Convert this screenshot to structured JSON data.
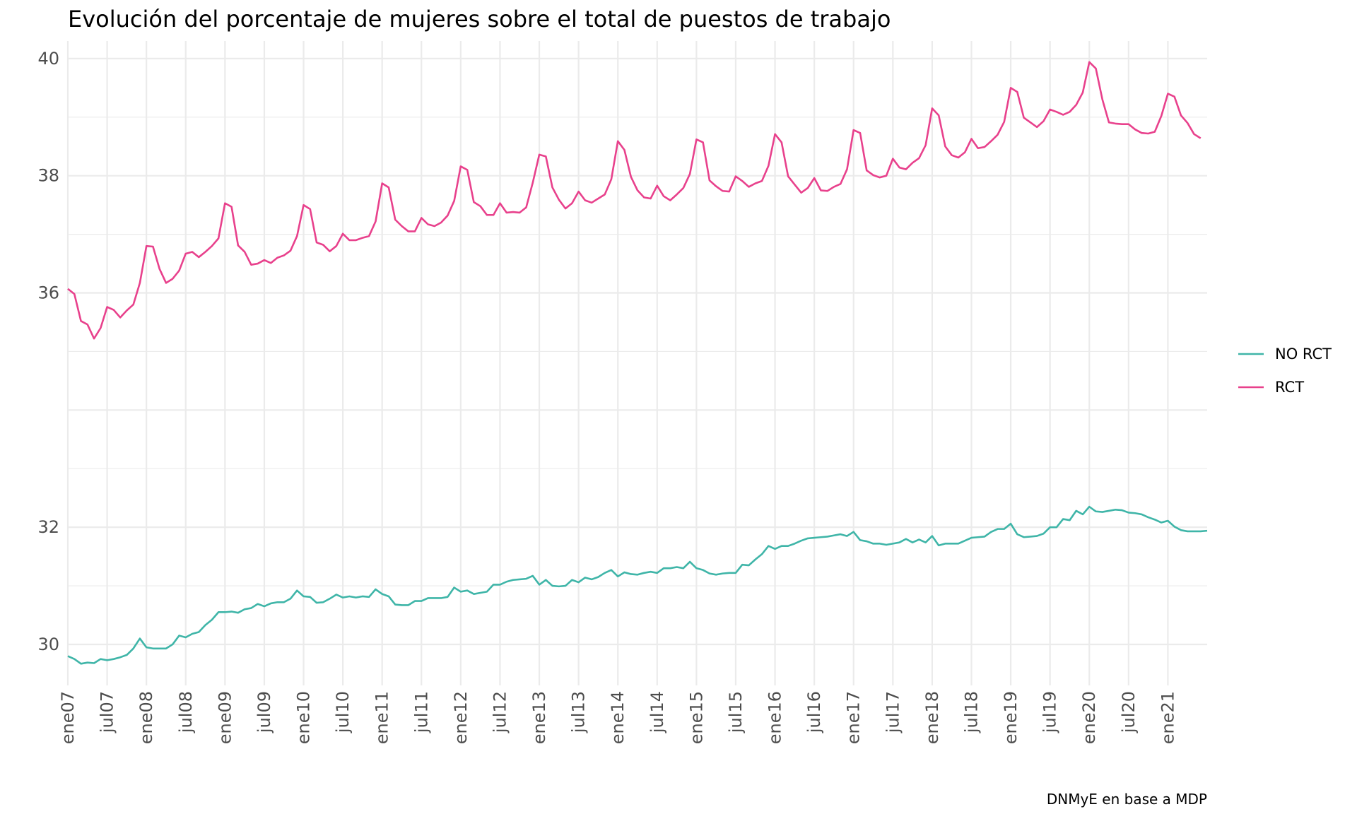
{
  "chart_data": {
    "type": "line",
    "title": "Evolución del porcentaje de mujeres sobre el total de puestos de trabajo",
    "caption": "DNMyE en base a MDP",
    "xlabel": "",
    "ylabel": "",
    "x_start": "2007-01",
    "x_end": "2021-09",
    "x_tick_labels": [
      "ene07",
      "jul07",
      "ene08",
      "jul08",
      "ene09",
      "jul09",
      "ene10",
      "jul10",
      "ene11",
      "jul11",
      "ene12",
      "jul12",
      "ene13",
      "jul13",
      "ene14",
      "jul14",
      "ene15",
      "jul15",
      "ene16",
      "jul16",
      "ene17",
      "jul17",
      "ene18",
      "jul18",
      "ene19",
      "jul19",
      "ene20",
      "jul20",
      "ene21"
    ],
    "y_ticks": [
      30,
      32,
      36,
      38,
      40
    ],
    "ylim": [
      29.3,
      40.3
    ],
    "legend_position": "right",
    "grid": true,
    "series": [
      {
        "name": "NO RCT",
        "color": "#3fb5a8",
        "values": [
          29.8,
          29.75,
          29.67,
          29.69,
          29.68,
          29.75,
          29.73,
          29.75,
          29.78,
          29.82,
          29.93,
          30.1,
          29.95,
          29.93,
          29.93,
          29.93,
          30.0,
          30.15,
          30.12,
          30.18,
          30.21,
          30.33,
          30.42,
          30.55,
          30.55,
          30.56,
          30.54,
          30.6,
          30.62,
          30.69,
          30.65,
          30.7,
          30.72,
          30.72,
          30.78,
          30.92,
          30.82,
          30.81,
          30.71,
          30.72,
          30.78,
          30.85,
          30.8,
          30.82,
          30.8,
          30.82,
          30.81,
          30.94,
          30.86,
          30.82,
          30.68,
          30.67,
          30.67,
          30.74,
          30.74,
          30.79,
          30.79,
          30.79,
          30.81,
          30.97,
          30.9,
          30.92,
          30.86,
          30.88,
          30.9,
          31.02,
          31.02,
          31.07,
          31.1,
          31.11,
          31.12,
          31.17,
          31.02,
          31.1,
          31.0,
          30.99,
          31.0,
          31.1,
          31.06,
          31.14,
          31.11,
          31.15,
          31.22,
          31.27,
          31.16,
          31.23,
          31.2,
          31.19,
          31.22,
          31.24,
          31.22,
          31.3,
          31.3,
          31.32,
          31.3,
          31.41,
          31.3,
          31.27,
          31.21,
          31.19,
          31.21,
          31.22,
          31.22,
          31.36,
          31.35,
          31.45,
          31.54,
          31.68,
          31.63,
          31.68,
          31.68,
          31.72,
          31.77,
          31.81,
          31.82,
          31.83,
          31.84,
          31.86,
          31.88,
          31.85,
          31.92,
          31.78,
          31.76,
          31.72,
          31.72,
          31.7,
          31.72,
          31.74,
          31.8,
          31.74,
          31.79,
          31.74,
          31.85,
          31.69,
          31.72,
          31.72,
          31.72,
          31.77,
          31.82,
          31.83,
          31.84,
          31.92,
          31.97,
          31.97,
          32.06,
          31.88,
          31.83,
          31.84,
          31.85,
          31.89,
          32.0,
          32.0,
          32.14,
          32.12,
          32.28,
          32.22,
          32.35,
          32.27,
          32.26,
          32.28,
          32.3,
          32.29,
          32.25,
          32.24,
          32.22,
          32.17,
          32.13,
          32.08,
          32.11,
          32.01,
          31.95,
          31.93,
          31.93,
          31.93,
          31.94
        ]
      },
      {
        "name": "RCT",
        "color": "#e8418c",
        "values": [
          36.07,
          35.98,
          35.52,
          35.46,
          35.22,
          35.4,
          35.76,
          35.71,
          35.58,
          35.7,
          35.8,
          36.17,
          36.8,
          36.79,
          36.41,
          36.17,
          36.24,
          36.38,
          36.67,
          36.7,
          36.61,
          36.7,
          36.8,
          36.93,
          37.53,
          37.47,
          36.81,
          36.7,
          36.48,
          36.5,
          36.56,
          36.51,
          36.6,
          36.64,
          36.72,
          36.97,
          37.5,
          37.43,
          36.86,
          36.82,
          36.71,
          36.8,
          37.01,
          36.9,
          36.9,
          36.94,
          36.97,
          37.22,
          37.87,
          37.8,
          37.25,
          37.14,
          37.05,
          37.05,
          37.28,
          37.17,
          37.14,
          37.2,
          37.32,
          37.57,
          38.16,
          38.1,
          37.55,
          37.48,
          37.33,
          37.33,
          37.53,
          37.37,
          37.38,
          37.37,
          37.46,
          37.88,
          38.36,
          38.33,
          37.8,
          37.59,
          37.44,
          37.53,
          37.73,
          37.58,
          37.54,
          37.61,
          37.68,
          37.94,
          38.59,
          38.44,
          37.98,
          37.75,
          37.63,
          37.61,
          37.83,
          37.65,
          37.58,
          37.68,
          37.79,
          38.03,
          38.62,
          38.57,
          37.92,
          37.82,
          37.74,
          37.73,
          37.99,
          37.91,
          37.81,
          37.87,
          37.91,
          38.17,
          38.71,
          38.57,
          37.99,
          37.85,
          37.71,
          37.79,
          37.96,
          37.75,
          37.74,
          37.81,
          37.86,
          38.11,
          38.78,
          38.73,
          38.09,
          38.01,
          37.97,
          38.0,
          38.29,
          38.14,
          38.11,
          38.22,
          38.3,
          38.52,
          39.15,
          39.03,
          38.5,
          38.35,
          38.31,
          38.4,
          38.63,
          38.47,
          38.49,
          38.59,
          38.7,
          38.92,
          39.5,
          39.43,
          38.99,
          38.91,
          38.83,
          38.93,
          39.13,
          39.09,
          39.04,
          39.09,
          39.21,
          39.42,
          39.94,
          39.83,
          39.3,
          38.91,
          38.89,
          38.88,
          38.88,
          38.79,
          38.73,
          38.72,
          38.75,
          39.02,
          39.4,
          39.35,
          39.03,
          38.9,
          38.71,
          38.64
        ]
      }
    ]
  }
}
